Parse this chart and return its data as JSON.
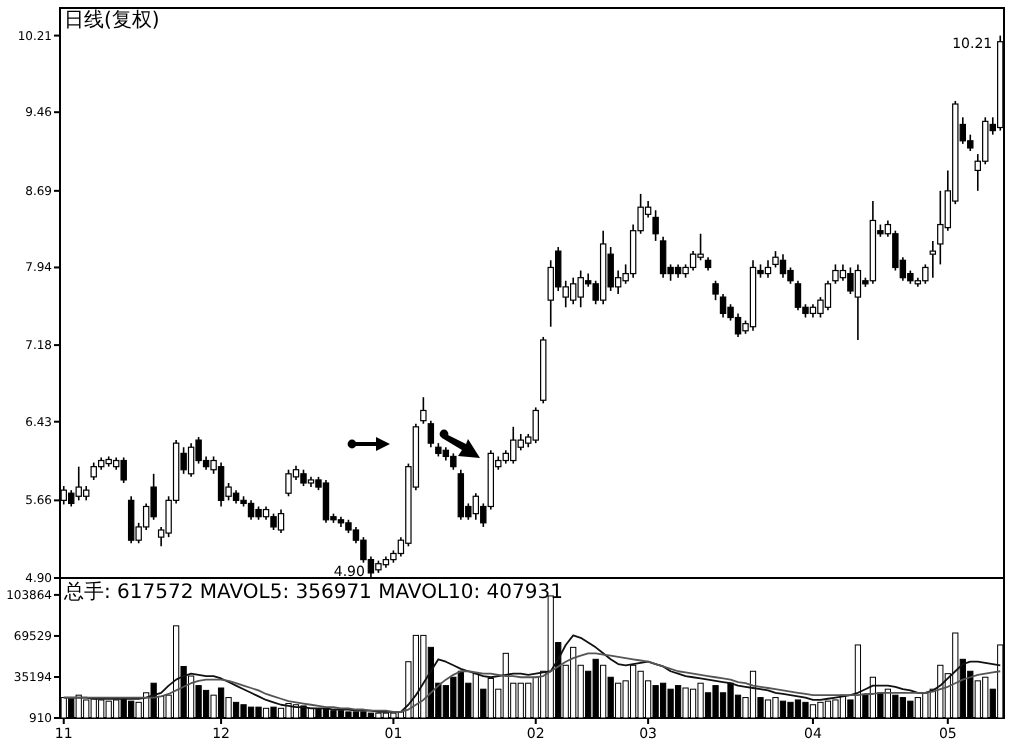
{
  "chart_data": [
    {
      "type": "candlestick",
      "title": "日线(复权)",
      "categories": [
        null,
        null,
        null,
        null,
        null,
        null,
        null,
        null,
        null,
        null,
        null,
        null,
        null,
        null,
        null,
        null,
        null,
        null,
        null,
        null,
        null,
        null,
        null,
        null,
        null,
        null,
        null,
        null,
        null,
        null,
        null,
        null,
        null,
        null,
        null,
        null,
        null,
        null,
        null,
        null,
        null,
        null,
        null,
        null,
        null,
        null,
        null,
        null,
        null,
        null,
        null,
        null,
        null,
        null,
        null,
        null,
        null,
        null,
        null,
        null,
        null,
        null,
        null,
        null,
        null,
        null,
        null,
        null,
        null,
        null,
        null,
        null,
        null,
        null,
        null,
        null,
        null,
        null,
        null,
        null,
        null,
        null,
        null,
        null,
        null,
        null,
        null,
        null,
        null,
        null,
        null,
        null,
        null,
        null,
        null,
        null,
        null,
        null,
        null,
        null,
        null,
        null,
        null,
        null,
        null,
        null,
        null,
        null,
        null,
        null,
        null,
        null,
        null,
        null,
        null,
        null,
        null,
        null,
        null,
        null,
        null,
        null,
        null,
        null,
        null,
        null
      ],
      "ohlc": [
        [
          5.66,
          5.8,
          5.62,
          5.76
        ],
        [
          5.73,
          5.76,
          5.6,
          5.63
        ],
        [
          5.7,
          5.99,
          5.66,
          5.79
        ],
        [
          5.7,
          5.8,
          5.66,
          5.76
        ],
        [
          5.89,
          6.03,
          5.86,
          5.99
        ],
        [
          5.99,
          6.08,
          5.96,
          6.05
        ],
        [
          6.02,
          6.09,
          5.99,
          6.06
        ],
        [
          5.99,
          6.08,
          5.96,
          6.05
        ],
        [
          6.05,
          6.08,
          5.83,
          5.86
        ],
        [
          5.66,
          5.7,
          5.24,
          5.27
        ],
        [
          5.27,
          5.44,
          5.24,
          5.4
        ],
        [
          5.4,
          5.63,
          5.37,
          5.6
        ],
        [
          5.79,
          5.92,
          5.47,
          5.5
        ],
        [
          5.3,
          5.4,
          5.21,
          5.37
        ],
        [
          5.34,
          5.7,
          5.3,
          5.66
        ],
        [
          5.66,
          6.25,
          5.63,
          6.22
        ],
        [
          6.12,
          6.18,
          5.92,
          5.96
        ],
        [
          5.92,
          6.22,
          5.89,
          6.18
        ],
        [
          6.25,
          6.28,
          6.02,
          6.05
        ],
        [
          6.05,
          6.09,
          5.96,
          5.99
        ],
        [
          5.96,
          6.09,
          5.92,
          6.05
        ],
        [
          5.99,
          6.03,
          5.6,
          5.66
        ],
        [
          5.7,
          5.83,
          5.66,
          5.79
        ],
        [
          5.73,
          5.76,
          5.63,
          5.66
        ],
        [
          5.66,
          5.7,
          5.6,
          5.63
        ],
        [
          5.63,
          5.66,
          5.47,
          5.5
        ],
        [
          5.57,
          5.6,
          5.47,
          5.5
        ],
        [
          5.5,
          5.6,
          5.47,
          5.57
        ],
        [
          5.5,
          5.53,
          5.37,
          5.4
        ],
        [
          5.37,
          5.57,
          5.34,
          5.53
        ],
        [
          5.73,
          5.96,
          5.7,
          5.92
        ],
        [
          5.89,
          6.0,
          5.86,
          5.96
        ],
        [
          5.92,
          5.96,
          5.8,
          5.83
        ],
        [
          5.83,
          5.89,
          5.79,
          5.86
        ],
        [
          5.86,
          5.89,
          5.76,
          5.79
        ],
        [
          5.83,
          5.86,
          5.44,
          5.47
        ],
        [
          5.5,
          5.53,
          5.44,
          5.47
        ],
        [
          5.47,
          5.5,
          5.4,
          5.44
        ],
        [
          5.44,
          5.47,
          5.34,
          5.37
        ],
        [
          5.37,
          5.4,
          5.24,
          5.27
        ],
        [
          5.27,
          5.3,
          5.05,
          5.08
        ],
        [
          5.08,
          5.11,
          4.9,
          4.95
        ],
        [
          4.98,
          5.07,
          4.95,
          5.04
        ],
        [
          5.03,
          5.11,
          5.0,
          5.08
        ],
        [
          5.08,
          5.17,
          5.05,
          5.14
        ],
        [
          5.14,
          5.3,
          5.11,
          5.27
        ],
        [
          5.24,
          6.02,
          5.21,
          5.99
        ],
        [
          5.79,
          6.41,
          5.76,
          6.38
        ],
        [
          6.44,
          6.67,
          6.41,
          6.54
        ],
        [
          6.41,
          6.44,
          6.18,
          6.22
        ],
        [
          6.18,
          6.22,
          6.09,
          6.12
        ],
        [
          6.15,
          6.18,
          6.05,
          6.09
        ],
        [
          6.09,
          6.12,
          5.96,
          5.99
        ],
        [
          5.92,
          5.96,
          5.47,
          5.5
        ],
        [
          5.6,
          5.63,
          5.47,
          5.5
        ],
        [
          5.53,
          5.73,
          5.47,
          5.7
        ],
        [
          5.6,
          5.63,
          5.4,
          5.44
        ],
        [
          5.6,
          6.15,
          5.57,
          6.12
        ],
        [
          5.99,
          6.09,
          5.96,
          6.05
        ],
        [
          6.05,
          6.15,
          6.02,
          6.12
        ],
        [
          6.05,
          6.38,
          6.02,
          6.25
        ],
        [
          6.18,
          6.31,
          6.15,
          6.25
        ],
        [
          6.22,
          6.31,
          6.18,
          6.28
        ],
        [
          6.25,
          6.57,
          6.22,
          6.54
        ],
        [
          6.64,
          7.26,
          6.61,
          7.23
        ],
        [
          7.62,
          8.01,
          7.36,
          7.94
        ],
        [
          8.1,
          8.14,
          7.71,
          7.75
        ],
        [
          7.65,
          7.81,
          7.55,
          7.75
        ],
        [
          7.62,
          7.84,
          7.58,
          7.78
        ],
        [
          7.65,
          7.91,
          7.55,
          7.84
        ],
        [
          7.81,
          7.88,
          7.75,
          7.78
        ],
        [
          7.78,
          7.81,
          7.58,
          7.62
        ],
        [
          7.62,
          8.3,
          7.58,
          8.17
        ],
        [
          8.07,
          8.14,
          7.71,
          7.75
        ],
        [
          7.75,
          7.91,
          7.68,
          7.84
        ],
        [
          7.81,
          7.97,
          7.78,
          7.88
        ],
        [
          7.88,
          8.36,
          7.84,
          8.3
        ],
        [
          8.3,
          8.66,
          8.27,
          8.53
        ],
        [
          8.46,
          8.59,
          8.43,
          8.53
        ],
        [
          8.43,
          8.5,
          8.2,
          8.27
        ],
        [
          8.2,
          8.24,
          7.84,
          7.88
        ],
        [
          7.94,
          7.97,
          7.81,
          7.88
        ],
        [
          7.94,
          7.97,
          7.84,
          7.88
        ],
        [
          7.88,
          7.97,
          7.84,
          7.94
        ],
        [
          7.94,
          8.1,
          7.91,
          8.07
        ],
        [
          8.04,
          8.27,
          8.01,
          8.07
        ],
        [
          8.01,
          8.04,
          7.91,
          7.94
        ],
        [
          7.78,
          7.81,
          7.62,
          7.68
        ],
        [
          7.65,
          7.68,
          7.45,
          7.49
        ],
        [
          7.55,
          7.58,
          7.42,
          7.45
        ],
        [
          7.45,
          7.49,
          7.26,
          7.29
        ],
        [
          7.32,
          7.42,
          7.29,
          7.39
        ],
        [
          7.36,
          8.01,
          7.32,
          7.94
        ],
        [
          7.91,
          7.97,
          7.84,
          7.88
        ],
        [
          7.88,
          8.01,
          7.84,
          7.94
        ],
        [
          7.97,
          8.1,
          7.94,
          8.04
        ],
        [
          8.01,
          8.07,
          7.84,
          7.88
        ],
        [
          7.91,
          7.94,
          7.78,
          7.81
        ],
        [
          7.78,
          7.81,
          7.52,
          7.55
        ],
        [
          7.55,
          7.58,
          7.45,
          7.49
        ],
        [
          7.49,
          7.58,
          7.45,
          7.55
        ],
        [
          7.49,
          7.65,
          7.45,
          7.62
        ],
        [
          7.55,
          7.81,
          7.52,
          7.78
        ],
        [
          7.81,
          7.97,
          7.78,
          7.91
        ],
        [
          7.84,
          7.97,
          7.81,
          7.91
        ],
        [
          7.88,
          7.94,
          7.68,
          7.71
        ],
        [
          7.65,
          7.97,
          7.23,
          7.91
        ],
        [
          7.81,
          7.84,
          7.75,
          7.78
        ],
        [
          7.81,
          8.59,
          7.78,
          8.4
        ],
        [
          8.3,
          8.36,
          8.24,
          8.27
        ],
        [
          8.27,
          8.4,
          8.24,
          8.36
        ],
        [
          8.27,
          8.3,
          7.91,
          7.94
        ],
        [
          8.01,
          8.04,
          7.81,
          7.84
        ],
        [
          7.88,
          7.91,
          7.78,
          7.81
        ],
        [
          7.78,
          7.84,
          7.75,
          7.81
        ],
        [
          7.81,
          7.97,
          7.78,
          7.94
        ],
        [
          8.07,
          8.2,
          7.84,
          8.1
        ],
        [
          8.17,
          8.69,
          7.97,
          8.36
        ],
        [
          8.33,
          8.89,
          8.3,
          8.69
        ],
        [
          8.59,
          9.57,
          8.56,
          9.54
        ],
        [
          9.34,
          9.41,
          9.15,
          9.18
        ],
        [
          9.18,
          9.24,
          9.08,
          9.11
        ],
        [
          8.89,
          9.05,
          8.69,
          8.98
        ],
        [
          8.98,
          9.41,
          8.95,
          9.37
        ],
        [
          9.34,
          9.41,
          9.24,
          9.28
        ],
        [
          9.31,
          10.21,
          9.28,
          10.15
        ]
      ],
      "ylim": [
        4.9,
        10.48
      ],
      "yticks": [
        {
          "value": 4.9,
          "label": "4.90"
        },
        5.66,
        6.43,
        7.18,
        7.94,
        8.69,
        9.46,
        10.21
      ],
      "tick_labels": "y",
      "annotations": [
        "4.90",
        "10.21"
      ]
    },
    {
      "type": "bar",
      "categories": [
        "11",
        null,
        null,
        null,
        null,
        null,
        null,
        null,
        null,
        null,
        null,
        null,
        null,
        null,
        null,
        null,
        null,
        null,
        null,
        null,
        null,
        "12",
        null,
        null,
        null,
        null,
        null,
        null,
        null,
        null,
        null,
        null,
        null,
        null,
        null,
        null,
        null,
        null,
        null,
        null,
        null,
        null,
        null,
        null,
        "01",
        null,
        null,
        null,
        null,
        null,
        null,
        null,
        null,
        null,
        null,
        null,
        null,
        null,
        null,
        null,
        null,
        null,
        null,
        "02",
        null,
        null,
        null,
        null,
        null,
        null,
        null,
        null,
        null,
        null,
        null,
        null,
        null,
        null,
        "03",
        null,
        null,
        null,
        null,
        null,
        null,
        null,
        null,
        null,
        null,
        null,
        null,
        null,
        null,
        null,
        null,
        null,
        null,
        null,
        null,
        null,
        "04",
        null,
        null,
        null,
        null,
        null,
        null,
        null,
        null,
        null,
        null,
        null,
        null,
        null,
        null,
        null,
        null,
        null,
        "05",
        null,
        null,
        null,
        null,
        null,
        null,
        null
      ],
      "series": [
        {
          "type": "bar",
          "values": [
            18000,
            17000,
            20000,
            16000,
            17000,
            16000,
            15000,
            16000,
            17000,
            15000,
            14000,
            22000,
            30000,
            19000,
            20000,
            78000,
            44000,
            36000,
            28000,
            24000,
            20000,
            26000,
            18000,
            14000,
            12000,
            10000,
            10000,
            9000,
            10000,
            9000,
            13000,
            12000,
            11000,
            9000,
            8000,
            8000,
            7000,
            7000,
            6000,
            6000,
            6000,
            5000,
            5000,
            5000,
            5000,
            6000,
            48000,
            70000,
            70000,
            60000,
            30000,
            28000,
            35000,
            40000,
            30000,
            38000,
            25000,
            34000,
            25000,
            55000,
            30000,
            30000,
            30000,
            35000,
            40000,
            103000,
            64000,
            45000,
            60000,
            45000,
            40000,
            50000,
            45000,
            35000,
            30000,
            32000,
            45000,
            40000,
            32000,
            28000,
            30000,
            25000,
            28000,
            26000,
            25000,
            30000,
            22000,
            28000,
            22000,
            30000,
            20000,
            18000,
            40000,
            18000,
            16000,
            18000,
            15000,
            14000,
            16000,
            14000,
            12000,
            14000,
            15000,
            16000,
            20000,
            16000,
            62000,
            20000,
            35000,
            22000,
            25000,
            20000,
            18000,
            15000,
            18000,
            22000,
            25000,
            45000,
            38000,
            72000,
            50000,
            40000,
            32000,
            35000,
            25000,
            62000
          ],
          "colors": [
            "#ffffff",
            "#000000",
            "#ffffff",
            "#ffffff",
            "#ffffff",
            "#ffffff",
            "#ffffff",
            "#ffffff",
            "#000000",
            "#000000",
            "#ffffff",
            "#ffffff",
            "#000000",
            "#ffffff",
            "#ffffff",
            "#ffffff",
            "#000000",
            "#ffffff",
            "#000000",
            "#000000",
            "#ffffff",
            "#000000",
            "#ffffff",
            "#000000",
            "#000000",
            "#000000",
            "#000000",
            "#ffffff",
            "#000000",
            "#ffffff",
            "#ffffff",
            "#ffffff",
            "#000000",
            "#ffffff",
            "#000000",
            "#000000",
            "#000000",
            "#000000",
            "#000000",
            "#000000",
            "#000000",
            "#000000",
            "#ffffff",
            "#ffffff",
            "#ffffff",
            "#ffffff",
            "#ffffff",
            "#ffffff",
            "#ffffff",
            "#000000",
            "#000000",
            "#000000",
            "#000000",
            "#000000",
            "#000000",
            "#ffffff",
            "#000000",
            "#ffffff",
            "#ffffff",
            "#ffffff",
            "#ffffff",
            "#ffffff",
            "#ffffff",
            "#ffffff",
            "#ffffff",
            "#ffffff",
            "#000000",
            "#ffffff",
            "#ffffff",
            "#ffffff",
            "#000000",
            "#000000",
            "#ffffff",
            "#000000",
            "#ffffff",
            "#ffffff",
            "#ffffff",
            "#ffffff",
            "#ffffff",
            "#000000",
            "#000000",
            "#000000",
            "#000000",
            "#ffffff",
            "#ffffff",
            "#ffffff",
            "#000000",
            "#000000",
            "#000000",
            "#000000",
            "#000000",
            "#ffffff",
            "#ffffff",
            "#000000",
            "#ffffff",
            "#ffffff",
            "#000000",
            "#000000",
            "#000000",
            "#000000",
            "#ffffff",
            "#ffffff",
            "#ffffff",
            "#ffffff",
            "#ffffff",
            "#000000",
            "#ffffff",
            "#000000",
            "#ffffff",
            "#000000",
            "#ffffff",
            "#000000",
            "#000000",
            "#000000",
            "#ffffff",
            "#ffffff",
            "#ffffff",
            "#ffffff",
            "#ffffff",
            "#ffffff",
            "#000000",
            "#000000",
            "#ffffff",
            "#ffffff",
            "#000000",
            "#ffffff"
          ]
        },
        {
          "type": "line",
          "color": "#111111",
          "values": [
            18000,
            18000,
            18000,
            18000,
            17000,
            17000,
            17000,
            17000,
            17000,
            17000,
            17000,
            18000,
            20000,
            22000,
            28000,
            33000,
            36000,
            38000,
            37000,
            36000,
            36000,
            34000,
            31000,
            28000,
            25000,
            22000,
            19000,
            16000,
            14000,
            12000,
            11000,
            10000,
            10000,
            9000,
            9000,
            9000,
            8000,
            8000,
            8000,
            7000,
            7000,
            7000,
            6000,
            6000,
            6000,
            6000,
            12000,
            20000,
            30000,
            40000,
            50000,
            48000,
            45000,
            42000,
            40000,
            38000,
            36000,
            35000,
            36000,
            37000,
            38000,
            38000,
            37000,
            38000,
            39000,
            40000,
            50000,
            62000,
            70000,
            68000,
            64000,
            60000,
            55000,
            50000,
            46000,
            45000,
            46000,
            47000,
            48000,
            46000,
            44000,
            40000,
            38000,
            36000,
            35000,
            34000,
            33000,
            32000,
            31000,
            30000,
            28000,
            27000,
            26000,
            25000,
            24000,
            22000,
            21000,
            20000,
            19000,
            18000,
            16000,
            16000,
            17000,
            18000,
            19000,
            20000,
            22000,
            25000,
            28000,
            28000,
            28000,
            27000,
            25000,
            24000,
            22000,
            22000,
            24000,
            28000,
            34000,
            40000,
            46000,
            48000,
            48000,
            47000,
            46000,
            45000
          ]
        },
        {
          "type": "line",
          "color": "#555555",
          "values": [
            18000,
            18000,
            18000,
            18000,
            18000,
            18000,
            18000,
            18000,
            18000,
            18000,
            18000,
            18000,
            18000,
            19000,
            21000,
            24000,
            27000,
            30000,
            32000,
            33000,
            33000,
            33000,
            32000,
            30000,
            28000,
            26000,
            24000,
            21000,
            19000,
            17000,
            15000,
            14000,
            13000,
            12000,
            11000,
            10000,
            10000,
            9000,
            9000,
            8000,
            8000,
            7000,
            7000,
            7000,
            6000,
            6000,
            8000,
            12000,
            16000,
            22000,
            28000,
            33000,
            37000,
            40000,
            40000,
            39000,
            38000,
            38000,
            37000,
            36000,
            36000,
            35000,
            35000,
            35000,
            36000,
            40000,
            44000,
            48000,
            51000,
            53000,
            55000,
            55000,
            54000,
            53000,
            52000,
            51000,
            50000,
            49000,
            48000,
            46000,
            44000,
            42000,
            40000,
            39000,
            38000,
            37000,
            36000,
            35000,
            34000,
            33000,
            31000,
            30000,
            28000,
            27000,
            26000,
            25000,
            24000,
            23000,
            22000,
            21000,
            20000,
            20000,
            20000,
            20000,
            20000,
            20000,
            20000,
            21000,
            21000,
            22000,
            22000,
            22000,
            22000,
            22000,
            22000,
            22000,
            23000,
            25000,
            27000,
            30000,
            33000,
            35000,
            37000,
            38000,
            39000,
            40000
          ]
        }
      ],
      "ylim": [
        910,
        118000
      ],
      "yticks": [
        910,
        35194,
        69529,
        103864
      ],
      "annotations": [
        "总手: 617572 MAVOL5: 356971 MAVOL10: 407931"
      ]
    }
  ]
}
